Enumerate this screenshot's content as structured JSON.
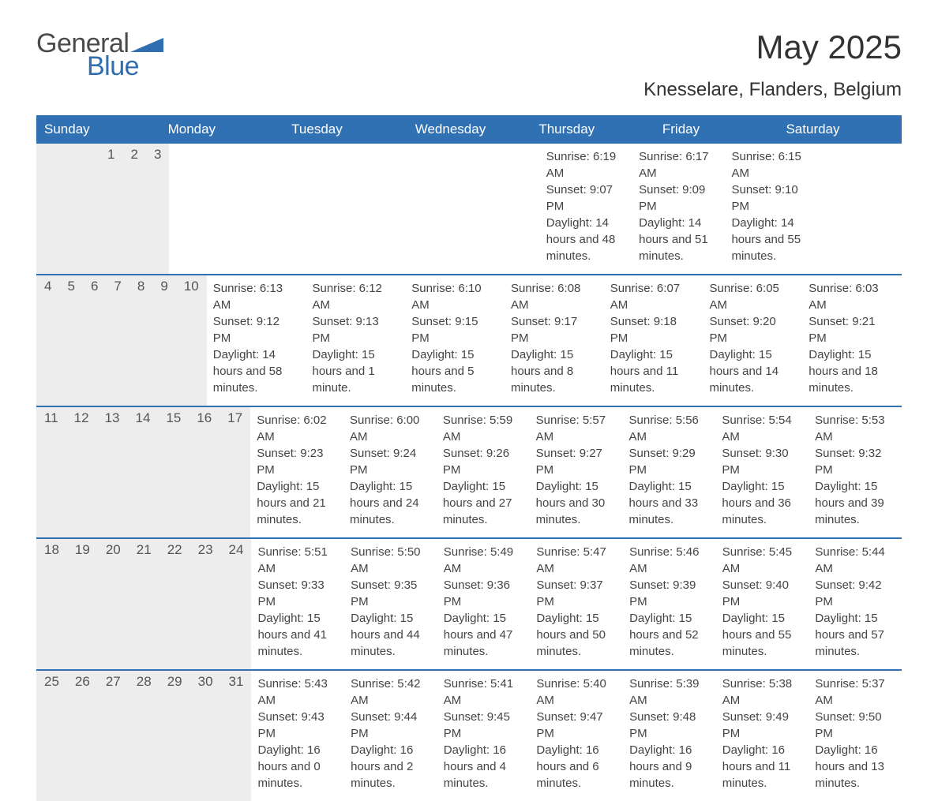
{
  "logo": {
    "text1": "General",
    "text2": "Blue",
    "shape_color": "#2f6fb0",
    "text1_color": "#4a4a4a",
    "text2_color": "#2f6fb0"
  },
  "title": "May 2025",
  "location": "Knesselare, Flanders, Belgium",
  "weekday_labels": [
    "Sunday",
    "Monday",
    "Tuesday",
    "Wednesday",
    "Thursday",
    "Friday",
    "Saturday"
  ],
  "colors": {
    "header_bg": "#3071b3",
    "header_text": "#ffffff",
    "daynum_bg": "#ededed",
    "daynum_text": "#555555",
    "body_text": "#444444",
    "week_border": "#3071b3",
    "page_bg": "#ffffff"
  },
  "fonts": {
    "title_size_pt": 32,
    "location_size_pt": 18,
    "weekday_size_pt": 13,
    "daynum_size_pt": 13,
    "body_size_pt": 11
  },
  "calendar_type": "month-grid",
  "weeks": [
    [
      {
        "n": "",
        "sunrise": "",
        "sunset": "",
        "daylight": ""
      },
      {
        "n": "",
        "sunrise": "",
        "sunset": "",
        "daylight": ""
      },
      {
        "n": "",
        "sunrise": "",
        "sunset": "",
        "daylight": ""
      },
      {
        "n": "",
        "sunrise": "",
        "sunset": "",
        "daylight": ""
      },
      {
        "n": "1",
        "sunrise": "Sunrise: 6:19 AM",
        "sunset": "Sunset: 9:07 PM",
        "daylight": "Daylight: 14 hours and 48 minutes."
      },
      {
        "n": "2",
        "sunrise": "Sunrise: 6:17 AM",
        "sunset": "Sunset: 9:09 PM",
        "daylight": "Daylight: 14 hours and 51 minutes."
      },
      {
        "n": "3",
        "sunrise": "Sunrise: 6:15 AM",
        "sunset": "Sunset: 9:10 PM",
        "daylight": "Daylight: 14 hours and 55 minutes."
      }
    ],
    [
      {
        "n": "4",
        "sunrise": "Sunrise: 6:13 AM",
        "sunset": "Sunset: 9:12 PM",
        "daylight": "Daylight: 14 hours and 58 minutes."
      },
      {
        "n": "5",
        "sunrise": "Sunrise: 6:12 AM",
        "sunset": "Sunset: 9:13 PM",
        "daylight": "Daylight: 15 hours and 1 minute."
      },
      {
        "n": "6",
        "sunrise": "Sunrise: 6:10 AM",
        "sunset": "Sunset: 9:15 PM",
        "daylight": "Daylight: 15 hours and 5 minutes."
      },
      {
        "n": "7",
        "sunrise": "Sunrise: 6:08 AM",
        "sunset": "Sunset: 9:17 PM",
        "daylight": "Daylight: 15 hours and 8 minutes."
      },
      {
        "n": "8",
        "sunrise": "Sunrise: 6:07 AM",
        "sunset": "Sunset: 9:18 PM",
        "daylight": "Daylight: 15 hours and 11 minutes."
      },
      {
        "n": "9",
        "sunrise": "Sunrise: 6:05 AM",
        "sunset": "Sunset: 9:20 PM",
        "daylight": "Daylight: 15 hours and 14 minutes."
      },
      {
        "n": "10",
        "sunrise": "Sunrise: 6:03 AM",
        "sunset": "Sunset: 9:21 PM",
        "daylight": "Daylight: 15 hours and 18 minutes."
      }
    ],
    [
      {
        "n": "11",
        "sunrise": "Sunrise: 6:02 AM",
        "sunset": "Sunset: 9:23 PM",
        "daylight": "Daylight: 15 hours and 21 minutes."
      },
      {
        "n": "12",
        "sunrise": "Sunrise: 6:00 AM",
        "sunset": "Sunset: 9:24 PM",
        "daylight": "Daylight: 15 hours and 24 minutes."
      },
      {
        "n": "13",
        "sunrise": "Sunrise: 5:59 AM",
        "sunset": "Sunset: 9:26 PM",
        "daylight": "Daylight: 15 hours and 27 minutes."
      },
      {
        "n": "14",
        "sunrise": "Sunrise: 5:57 AM",
        "sunset": "Sunset: 9:27 PM",
        "daylight": "Daylight: 15 hours and 30 minutes."
      },
      {
        "n": "15",
        "sunrise": "Sunrise: 5:56 AM",
        "sunset": "Sunset: 9:29 PM",
        "daylight": "Daylight: 15 hours and 33 minutes."
      },
      {
        "n": "16",
        "sunrise": "Sunrise: 5:54 AM",
        "sunset": "Sunset: 9:30 PM",
        "daylight": "Daylight: 15 hours and 36 minutes."
      },
      {
        "n": "17",
        "sunrise": "Sunrise: 5:53 AM",
        "sunset": "Sunset: 9:32 PM",
        "daylight": "Daylight: 15 hours and 39 minutes."
      }
    ],
    [
      {
        "n": "18",
        "sunrise": "Sunrise: 5:51 AM",
        "sunset": "Sunset: 9:33 PM",
        "daylight": "Daylight: 15 hours and 41 minutes."
      },
      {
        "n": "19",
        "sunrise": "Sunrise: 5:50 AM",
        "sunset": "Sunset: 9:35 PM",
        "daylight": "Daylight: 15 hours and 44 minutes."
      },
      {
        "n": "20",
        "sunrise": "Sunrise: 5:49 AM",
        "sunset": "Sunset: 9:36 PM",
        "daylight": "Daylight: 15 hours and 47 minutes."
      },
      {
        "n": "21",
        "sunrise": "Sunrise: 5:47 AM",
        "sunset": "Sunset: 9:37 PM",
        "daylight": "Daylight: 15 hours and 50 minutes."
      },
      {
        "n": "22",
        "sunrise": "Sunrise: 5:46 AM",
        "sunset": "Sunset: 9:39 PM",
        "daylight": "Daylight: 15 hours and 52 minutes."
      },
      {
        "n": "23",
        "sunrise": "Sunrise: 5:45 AM",
        "sunset": "Sunset: 9:40 PM",
        "daylight": "Daylight: 15 hours and 55 minutes."
      },
      {
        "n": "24",
        "sunrise": "Sunrise: 5:44 AM",
        "sunset": "Sunset: 9:42 PM",
        "daylight": "Daylight: 15 hours and 57 minutes."
      }
    ],
    [
      {
        "n": "25",
        "sunrise": "Sunrise: 5:43 AM",
        "sunset": "Sunset: 9:43 PM",
        "daylight": "Daylight: 16 hours and 0 minutes."
      },
      {
        "n": "26",
        "sunrise": "Sunrise: 5:42 AM",
        "sunset": "Sunset: 9:44 PM",
        "daylight": "Daylight: 16 hours and 2 minutes."
      },
      {
        "n": "27",
        "sunrise": "Sunrise: 5:41 AM",
        "sunset": "Sunset: 9:45 PM",
        "daylight": "Daylight: 16 hours and 4 minutes."
      },
      {
        "n": "28",
        "sunrise": "Sunrise: 5:40 AM",
        "sunset": "Sunset: 9:47 PM",
        "daylight": "Daylight: 16 hours and 6 minutes."
      },
      {
        "n": "29",
        "sunrise": "Sunrise: 5:39 AM",
        "sunset": "Sunset: 9:48 PM",
        "daylight": "Daylight: 16 hours and 9 minutes."
      },
      {
        "n": "30",
        "sunrise": "Sunrise: 5:38 AM",
        "sunset": "Sunset: 9:49 PM",
        "daylight": "Daylight: 16 hours and 11 minutes."
      },
      {
        "n": "31",
        "sunrise": "Sunrise: 5:37 AM",
        "sunset": "Sunset: 9:50 PM",
        "daylight": "Daylight: 16 hours and 13 minutes."
      }
    ]
  ]
}
